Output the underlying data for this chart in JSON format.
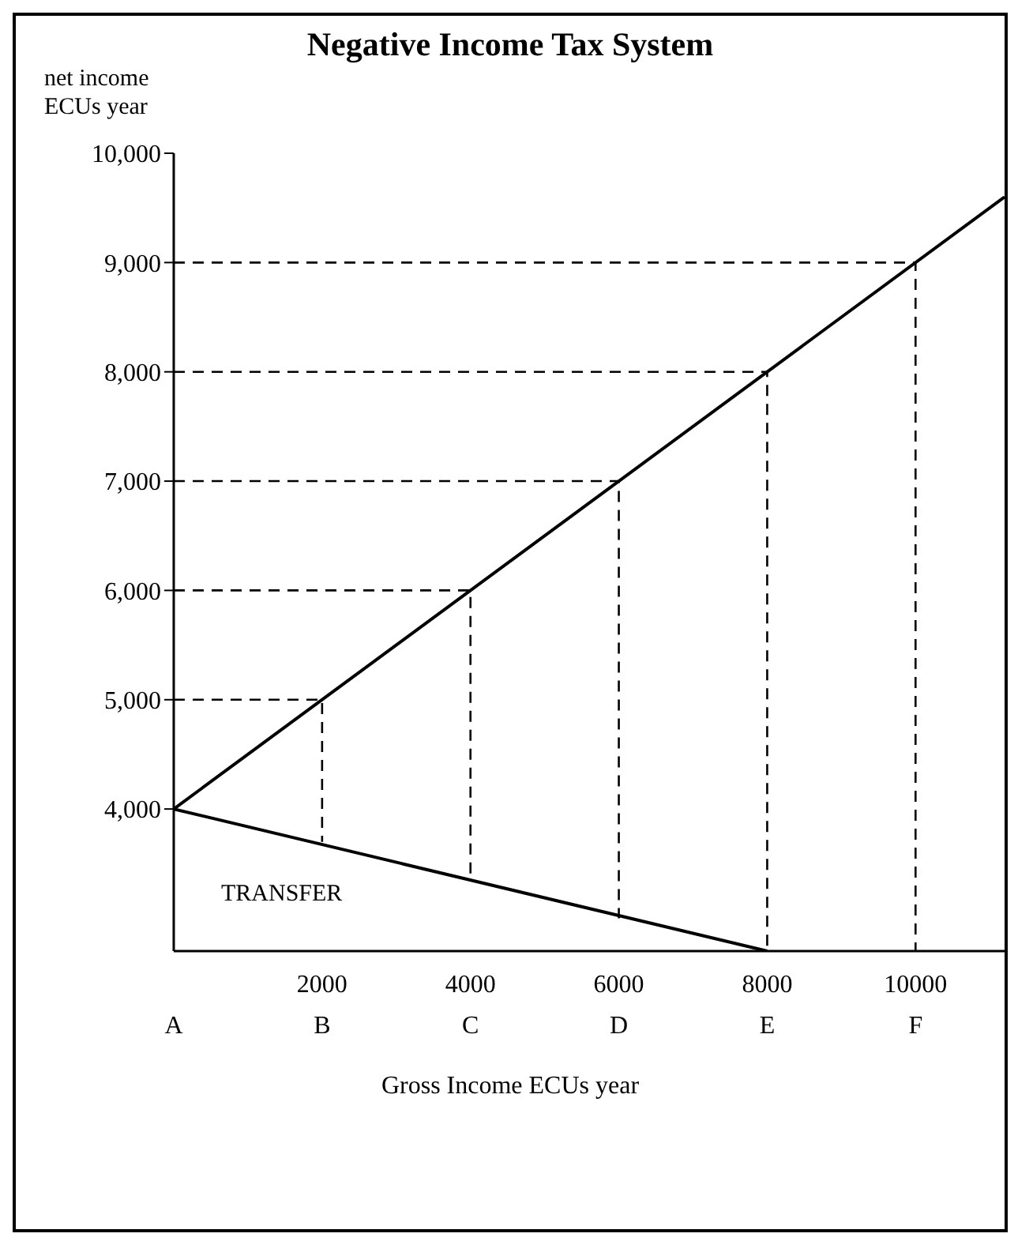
{
  "chart_data": {
    "type": "line",
    "title": "Negative Income Tax System",
    "ylabel": "net income ECUs year",
    "xlabel": "Gross Income ECUs year",
    "xlim": [
      0,
      11200
    ],
    "xticks": [
      {
        "value": 0,
        "label": "\nA"
      },
      {
        "value": 2000,
        "label": "2000\nB"
      },
      {
        "value": 4000,
        "label": "4000\nC"
      },
      {
        "value": 6000,
        "label": "6000\nD"
      },
      {
        "value": 8000,
        "label": "8000\nE"
      },
      {
        "value": 10000,
        "label": "10000\nF"
      }
    ],
    "ylim": [
      2700,
      10000
    ],
    "yticks": [
      {
        "value": 4000,
        "label": "4,000"
      },
      {
        "value": 5000,
        "label": "5,000"
      },
      {
        "value": 6000,
        "label": "6,000"
      },
      {
        "value": 7000,
        "label": "7,000"
      },
      {
        "value": 8000,
        "label": "8,000"
      },
      {
        "value": 9000,
        "label": "9,000"
      },
      {
        "value": 10000,
        "label": "10,000"
      }
    ],
    "grid": false,
    "marker": "none",
    "annotations": [
      "TRANSFER"
    ],
    "series": [
      {
        "color": "#000000",
        "line_style": "solid",
        "x": [
          0,
          11200
        ],
        "values": [
          4000,
          9600
        ]
      },
      {
        "color": "#000000",
        "line_style": "solid",
        "x": [
          0,
          8000
        ],
        "values": [
          4000,
          2700
        ]
      },
      {
        "color": "#000000",
        "line_style": "dashed",
        "x": [
          0,
          2000,
          2000
        ],
        "values": [
          5000,
          5000,
          3700
        ]
      },
      {
        "color": "#000000",
        "line_style": "dashed",
        "x": [
          0,
          4000,
          4000
        ],
        "values": [
          6000,
          6000,
          3350
        ]
      },
      {
        "color": "#000000",
        "line_style": "dashed",
        "x": [
          0,
          6000,
          6000
        ],
        "values": [
          7000,
          7000,
          3000
        ]
      },
      {
        "color": "#000000",
        "line_style": "dashed",
        "x": [
          0,
          8000,
          8000
        ],
        "values": [
          8000,
          8000,
          2700
        ]
      },
      {
        "color": "#000000",
        "line_style": "dashed",
        "x": [
          0,
          10000,
          10000
        ],
        "values": [
          9000,
          9000,
          2700
        ]
      }
    ]
  }
}
